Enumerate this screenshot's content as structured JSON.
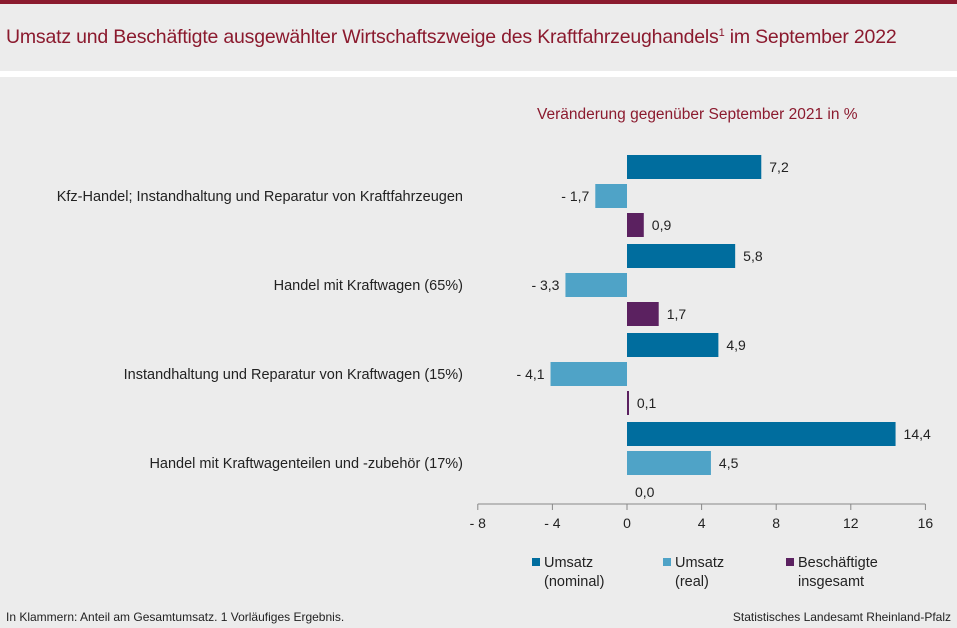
{
  "title_main": "Umsatz und  Beschäftigte ausgewählter Wirtschaftszweige des Kraftfahrzeughandels",
  "title_sup": "1",
  "title_tail": " im September 2022",
  "subtitle": "Veränderung  gegenüber  September 2021 in %",
  "footer_left": "In Klammern:  Anteil am Gesamtumsatz.  1 Vorläufiges  Ergebnis.",
  "footer_right": "Statistisches Landesamt  Rheinland-Pfalz",
  "colors": {
    "title": "#8b1a2e",
    "nominal": "#006d9e",
    "real": "#4fa3c7",
    "employees": "#5b2160"
  },
  "chart_data": {
    "type": "bar",
    "orientation": "horizontal",
    "categories": [
      "Kfz-Handel; Instandhaltung und Reparatur von Kraftfahrzeugen",
      "Handel mit Kraftwagen (65%)",
      "Instandhaltung und Reparatur von Kraftwagen (15%)",
      "Handel mit Kraftwagenteilen und -zubehör (17%)"
    ],
    "series": [
      {
        "name": "Umsatz\n(nominal)",
        "values": [
          7.2,
          5.8,
          4.9,
          14.4
        ],
        "labels": [
          "7,2",
          "5,8",
          "4,9",
          "14,4"
        ]
      },
      {
        "name": "Umsatz\n(real)",
        "values": [
          -1.7,
          -3.3,
          -4.1,
          4.5
        ],
        "labels": [
          "- 1,7",
          "- 3,3",
          "- 4,1",
          "4,5"
        ]
      },
      {
        "name": "Beschäftigte\ninsgesamt",
        "values": [
          0.9,
          1.7,
          0.1,
          0.0
        ],
        "labels": [
          "0,9",
          "1,7",
          "0,1",
          "0,0"
        ]
      }
    ],
    "xlim": [
      -8,
      16
    ],
    "xticks": [
      -8,
      -4,
      0,
      4,
      8,
      12,
      16
    ],
    "xtick_labels": [
      "- 8",
      "- 4",
      "0",
      "4",
      "8",
      "12",
      "16"
    ],
    "grid": false,
    "legend_position": "bottom"
  }
}
